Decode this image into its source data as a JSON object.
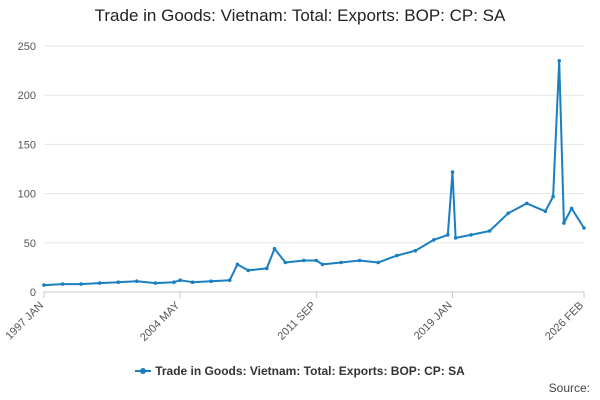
{
  "chart_data": {
    "type": "line",
    "title": "Trade in Goods: Vietnam: Total: Exports: BOP: CP: SA",
    "xlabel": "",
    "ylabel": "",
    "x_tick_labels": [
      "1997 JAN",
      "2004 MAY",
      "2011 SEP",
      "2019 JAN",
      "2026 FEB"
    ],
    "y_ticks": [
      0,
      50,
      100,
      150,
      200,
      250
    ],
    "ylim": [
      0,
      250
    ],
    "grid": true,
    "legend_position": "bottom",
    "color": "#1a7fc1",
    "series": [
      {
        "name": "Trade in Goods: Vietnam: Total: Exports: BOP: CP: SA",
        "x": [
          "1997 JAN",
          "1998 JAN",
          "1999 JAN",
          "2000 JAN",
          "2001 JAN",
          "2002 JAN",
          "2003 JAN",
          "2004 JAN",
          "2004 MAY",
          "2005 JAN",
          "2006 JAN",
          "2007 JAN",
          "2007 JUN",
          "2008 JAN",
          "2009 JAN",
          "2009 JUN",
          "2010 JAN",
          "2011 JAN",
          "2011 SEP",
          "2012 JAN",
          "2013 JAN",
          "2014 JAN",
          "2015 JAN",
          "2016 JAN",
          "2017 JAN",
          "2018 JAN",
          "2018 OCT",
          "2019 JAN",
          "2019 MAR",
          "2020 JAN",
          "2021 JAN",
          "2022 JAN",
          "2023 JAN",
          "2024 JAN",
          "2024 JUN",
          "2024 OCT",
          "2025 JAN",
          "2025 JUN",
          "2026 FEB"
        ],
        "values": [
          7,
          8,
          8,
          9,
          10,
          11,
          9,
          10,
          12,
          10,
          11,
          12,
          28,
          22,
          24,
          44,
          30,
          32,
          32,
          28,
          30,
          32,
          30,
          37,
          42,
          53,
          58,
          122,
          55,
          58,
          62,
          80,
          90,
          82,
          97,
          235,
          70,
          85,
          65
        ]
      }
    ]
  },
  "source_label": "Source:"
}
